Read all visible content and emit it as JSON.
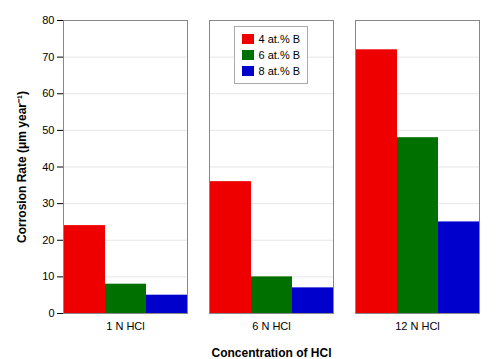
{
  "chart_data": {
    "type": "bar",
    "categories": [
      "1 N HCl",
      "6 N HCl",
      "12 N HCl"
    ],
    "series": [
      {
        "name": "4 at.% B",
        "color": "#EE0000",
        "values": [
          24,
          36,
          72
        ]
      },
      {
        "name": "6 at.% B",
        "color": "#007000",
        "values": [
          8,
          10,
          48
        ]
      },
      {
        "name": "8 at.% B",
        "color": "#0000CC",
        "values": [
          5,
          7,
          25
        ]
      }
    ],
    "xlabel": "Concentration of HCl",
    "ylabel": "Corrosion Rate (μm year⁻¹)",
    "ylim": [
      0,
      80
    ],
    "yticks": [
      0,
      10,
      20,
      30,
      40,
      50,
      60,
      70,
      80
    ],
    "grid": true,
    "legend": "upper center"
  }
}
